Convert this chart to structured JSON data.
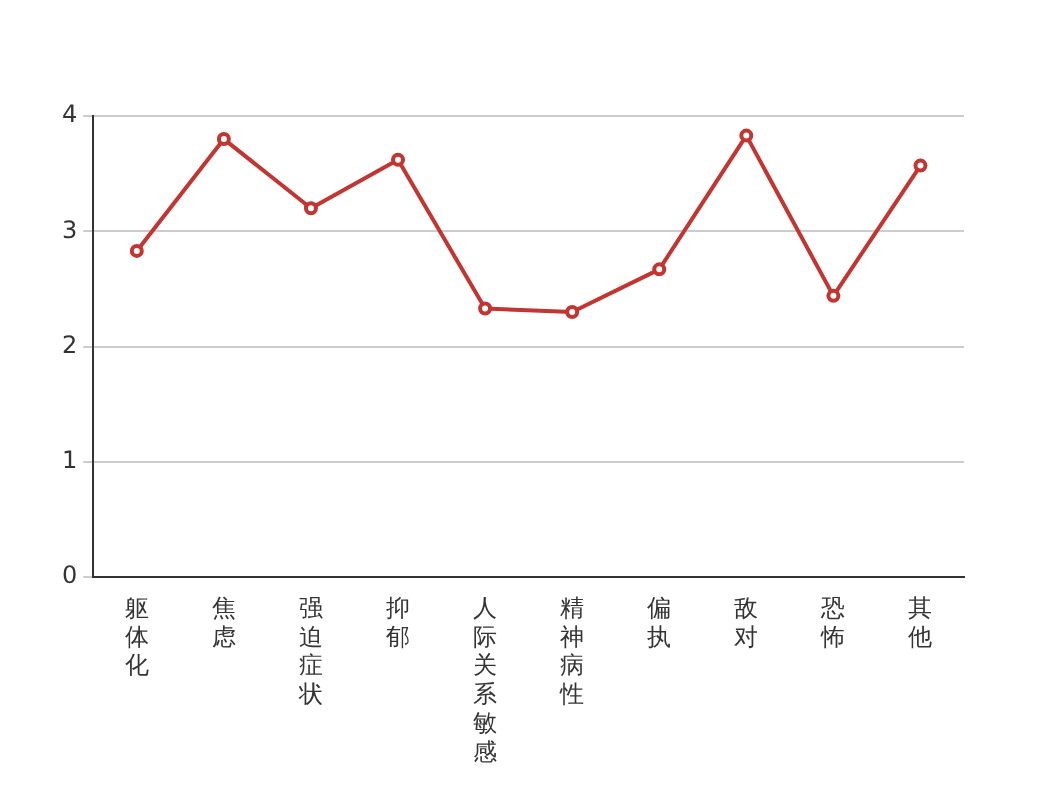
{
  "chart_data": {
    "type": "line",
    "categories": [
      "躯体化",
      "焦虑",
      "强迫症状",
      "抑郁",
      "人际关系敏感",
      "精神病性",
      "偏执",
      "敌对",
      "恐怖",
      "其他"
    ],
    "series": [
      {
        "color": "#c23531",
        "values": [
          2.83,
          3.8,
          3.2,
          3.62,
          2.33,
          2.3,
          2.67,
          3.83,
          2.44,
          3.57
        ]
      }
    ],
    "ylim": [
      0,
      4
    ],
    "yticks": [
      0,
      1,
      2,
      3,
      4
    ],
    "grid": "y",
    "legend": false,
    "marker": "circle",
    "line_style": "solid"
  }
}
